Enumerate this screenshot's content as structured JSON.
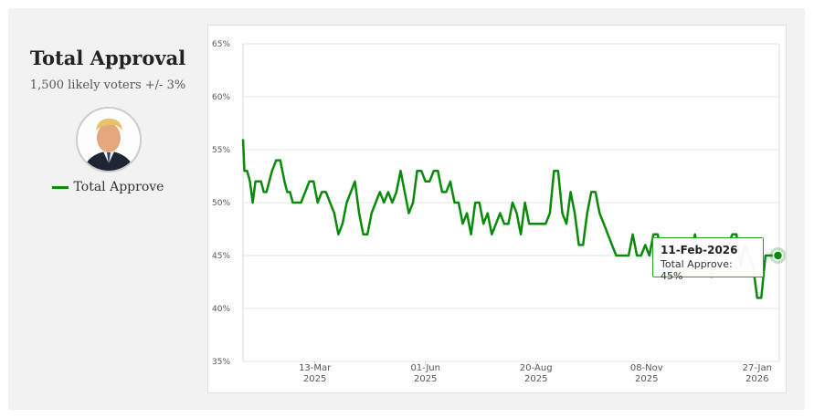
{
  "panel": {
    "title": "Total Approval",
    "subtitle": "1,500 likely voters +/- 3%",
    "legend_label": "Total Approve"
  },
  "tooltip": {
    "date": "11-Feb-2026",
    "label": "Total Approve: 45%"
  },
  "colors": {
    "line": "#0a8a0a",
    "grid": "#e6e6e6",
    "panel_bg": "#f2f2f2"
  },
  "chart_data": {
    "type": "line",
    "title": "",
    "xlabel": "",
    "ylabel": "",
    "ylim": [
      35,
      65
    ],
    "y_ticks": [
      {
        "v": 65,
        "label": "65%"
      },
      {
        "v": 60,
        "label": "60%"
      },
      {
        "v": 55,
        "label": "55%"
      },
      {
        "v": 50,
        "label": "50%"
      },
      {
        "v": 45,
        "label": "45%"
      },
      {
        "v": 40,
        "label": "40%"
      },
      {
        "v": 35,
        "label": "35%"
      }
    ],
    "x_ticks": [
      {
        "date": "2025-03-13",
        "line1": "13-Mar",
        "line2": "2025"
      },
      {
        "date": "2025-06-01",
        "line1": "01-Jun",
        "line2": "2025"
      },
      {
        "date": "2025-08-20",
        "line1": "20-Aug",
        "line2": "2025"
      },
      {
        "date": "2025-11-08",
        "line1": "08-Nov",
        "line2": "2025"
      },
      {
        "date": "2026-01-27",
        "line1": "27-Jan",
        "line2": "2026"
      }
    ],
    "xlim": [
      "2025-01-20",
      "2026-02-12"
    ],
    "grid": true,
    "series": [
      {
        "name": "Total Approve",
        "x": [
          "2025-01-20",
          "2025-01-21",
          "2025-01-23",
          "2025-01-25",
          "2025-01-27",
          "2025-01-29",
          "2025-01-31",
          "2025-02-02",
          "2025-02-04",
          "2025-02-06",
          "2025-02-08",
          "2025-02-10",
          "2025-02-13",
          "2025-02-16",
          "2025-02-19",
          "2025-02-21",
          "2025-02-23",
          "2025-02-25",
          "2025-02-27",
          "2025-03-01",
          "2025-03-03",
          "2025-03-06",
          "2025-03-09",
          "2025-03-12",
          "2025-03-15",
          "2025-03-18",
          "2025-03-21",
          "2025-03-24",
          "2025-03-27",
          "2025-03-30",
          "2025-04-02",
          "2025-04-05",
          "2025-04-08",
          "2025-04-11",
          "2025-04-14",
          "2025-04-17",
          "2025-04-20",
          "2025-04-23",
          "2025-04-26",
          "2025-04-29",
          "2025-05-02",
          "2025-05-05",
          "2025-05-08",
          "2025-05-11",
          "2025-05-14",
          "2025-05-17",
          "2025-05-20",
          "2025-05-23",
          "2025-05-26",
          "2025-05-29",
          "2025-06-01",
          "2025-06-04",
          "2025-06-07",
          "2025-06-10",
          "2025-06-13",
          "2025-06-16",
          "2025-06-19",
          "2025-06-22",
          "2025-06-25",
          "2025-06-28",
          "2025-07-01",
          "2025-07-04",
          "2025-07-07",
          "2025-07-10",
          "2025-07-13",
          "2025-07-16",
          "2025-07-19",
          "2025-07-22",
          "2025-07-25",
          "2025-07-28",
          "2025-07-31",
          "2025-08-03",
          "2025-08-06",
          "2025-08-09",
          "2025-08-12",
          "2025-08-15",
          "2025-08-18",
          "2025-08-21",
          "2025-08-24",
          "2025-08-27",
          "2025-08-30",
          "2025-09-02",
          "2025-09-05",
          "2025-09-08",
          "2025-09-11",
          "2025-09-14",
          "2025-09-17",
          "2025-09-20",
          "2025-09-23",
          "2025-09-26",
          "2025-09-29",
          "2025-10-02",
          "2025-10-05",
          "2025-10-08",
          "2025-10-11",
          "2025-10-14",
          "2025-10-17",
          "2025-10-20",
          "2025-10-23",
          "2025-10-26",
          "2025-10-29",
          "2025-11-01",
          "2025-11-04",
          "2025-11-07",
          "2025-11-10",
          "2025-11-13",
          "2025-11-16",
          "2025-11-19",
          "2025-11-22",
          "2025-11-25",
          "2025-11-28",
          "2025-12-01",
          "2025-12-04",
          "2025-12-07",
          "2025-12-10",
          "2025-12-13",
          "2025-12-16",
          "2025-12-19",
          "2025-12-22",
          "2025-12-25",
          "2025-12-28",
          "2025-12-31",
          "2026-01-03",
          "2026-01-06",
          "2026-01-09",
          "2026-01-12",
          "2026-01-15",
          "2026-01-18",
          "2026-01-21",
          "2026-01-24",
          "2026-01-27",
          "2026-01-30",
          "2026-02-02",
          "2026-02-05",
          "2026-02-08",
          "2026-02-11"
        ],
        "values": [
          56,
          53,
          53,
          52,
          50,
          52,
          52,
          52,
          51,
          51,
          52,
          53,
          54,
          54,
          52,
          51,
          51,
          50,
          50,
          50,
          50,
          51,
          52,
          52,
          50,
          51,
          51,
          50,
          49,
          47,
          48,
          50,
          51,
          52,
          49,
          47,
          47,
          49,
          50,
          51,
          50,
          51,
          50,
          51,
          53,
          51,
          49,
          50,
          53,
          53,
          52,
          52,
          53,
          53,
          51,
          51,
          52,
          50,
          50,
          48,
          49,
          47,
          50,
          50,
          48,
          49,
          47,
          48,
          49,
          48,
          48,
          50,
          49,
          47,
          50,
          48,
          48,
          48,
          48,
          48,
          49,
          53,
          53,
          49,
          48,
          51,
          49,
          46,
          46,
          49,
          51,
          51,
          49,
          48,
          47,
          46,
          45,
          45,
          45,
          45,
          47,
          45,
          45,
          46,
          45,
          47,
          47,
          45,
          45,
          46,
          45,
          45,
          45,
          46,
          45,
          47,
          45,
          45,
          44,
          43,
          45,
          45,
          45,
          46,
          47,
          47,
          44,
          46,
          45,
          44,
          41,
          41,
          45,
          45,
          45,
          45
        ],
        "color": "#0a8a0a"
      }
    ]
  }
}
